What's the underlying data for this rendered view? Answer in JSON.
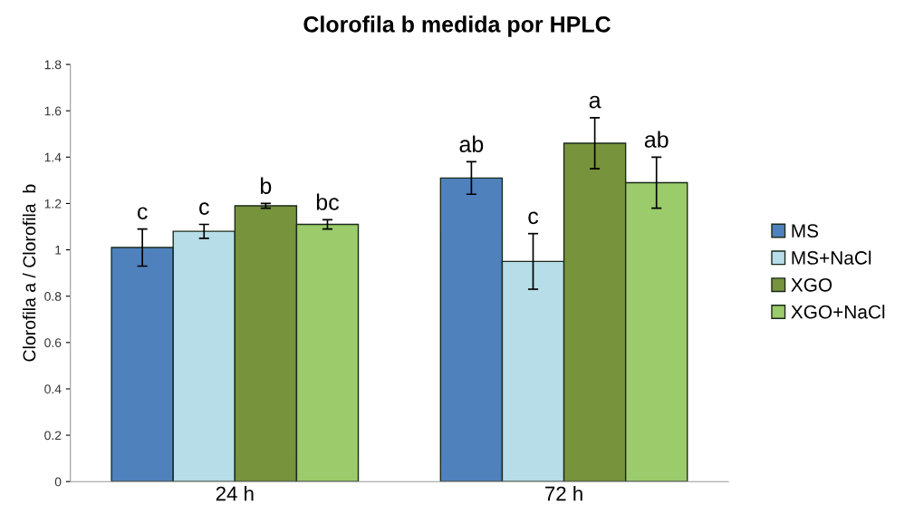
{
  "chart_data": {
    "type": "bar",
    "title": "Clorofila b medida por HPLC",
    "ylabel": "Clorofila a / Clorofila  b",
    "categories": [
      "24 h",
      "72 h"
    ],
    "series": [
      {
        "name": "MS",
        "color": "#4f81bd",
        "values": [
          1.01,
          1.31
        ],
        "errors": [
          0.08,
          0.07
        ]
      },
      {
        "name": "MS+NaCl",
        "color": "#b7dde8",
        "values": [
          1.08,
          0.95
        ],
        "errors": [
          0.03,
          0.12
        ]
      },
      {
        "name": "XGO",
        "color": "#77933c",
        "values": [
          1.19,
          1.46
        ],
        "errors": [
          0.01,
          0.11
        ]
      },
      {
        "name": "XGO+NaCl",
        "color": "#9bcb6a",
        "values": [
          1.11,
          1.29
        ],
        "errors": [
          0.02,
          0.11
        ]
      }
    ],
    "annotations": [
      "c",
      "c",
      "b",
      "bc",
      "ab",
      "c",
      "a",
      "ab"
    ],
    "ylim": [
      0,
      1.8
    ],
    "yticks": [
      0,
      0.2,
      0.4,
      0.6,
      0.8,
      1,
      1.2,
      1.4,
      1.6,
      1.8
    ],
    "grid": false,
    "legend": "right"
  }
}
